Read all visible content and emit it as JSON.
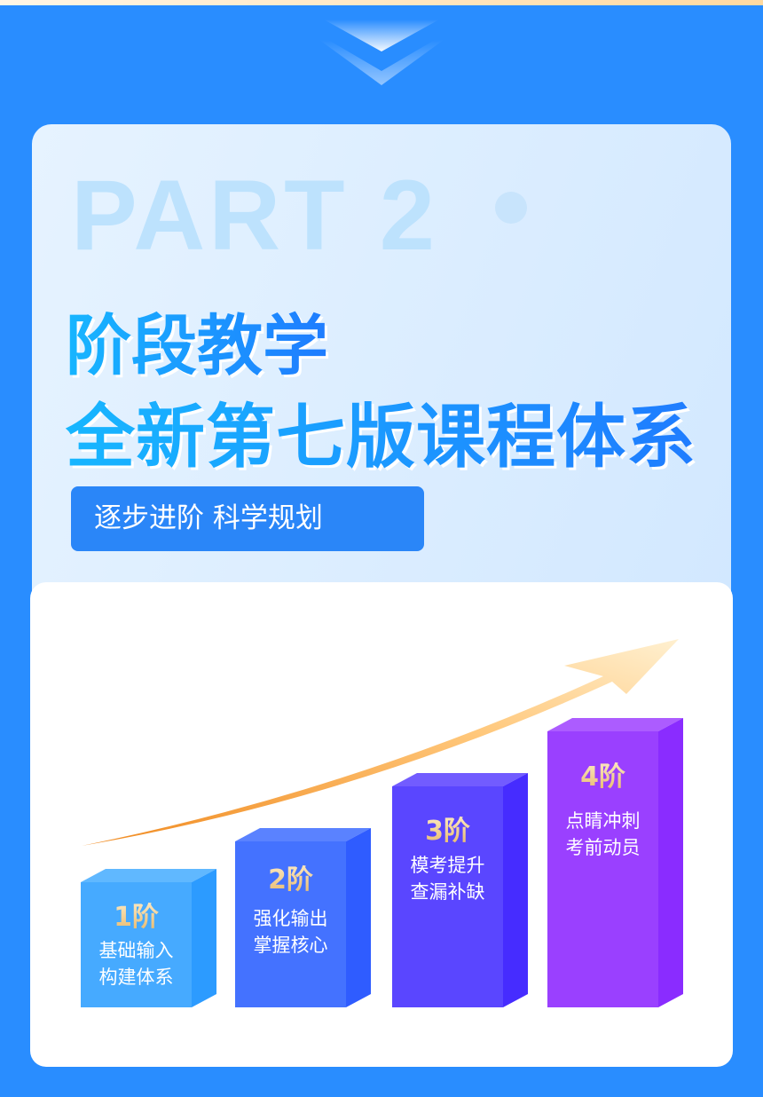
{
  "header": {
    "part_label": "PART 2",
    "title_line1": "阶段教学",
    "title_line2": "全新第七版课程体系",
    "tagline": "逐步进阶  科学规划"
  },
  "stages": [
    {
      "label": "1阶",
      "lines": [
        "基础输入",
        "构建体系"
      ],
      "color_front": "#46aaff",
      "color_side": "#2c9bff",
      "color_top": "#60b8ff"
    },
    {
      "label": "2阶",
      "lines": [
        "强化输出",
        "掌握核心"
      ],
      "color_front": "#4472ff",
      "color_side": "#2f5cff",
      "color_top": "#5a82ff"
    },
    {
      "label": "3阶",
      "lines": [
        "模考提升",
        "查漏补缺"
      ],
      "color_front": "#5a46ff",
      "color_side": "#462cff",
      "color_top": "#725cff"
    },
    {
      "label": "4阶",
      "lines": [
        "点睛冲刺",
        "考前动员"
      ],
      "color_front": "#9a40ff",
      "color_side": "#8a2cff",
      "color_top": "#ac5cff"
    }
  ],
  "colors": {
    "background": "#298dff",
    "arrow_light": "#ffe1b0",
    "arrow_dark": "#f08a20"
  }
}
